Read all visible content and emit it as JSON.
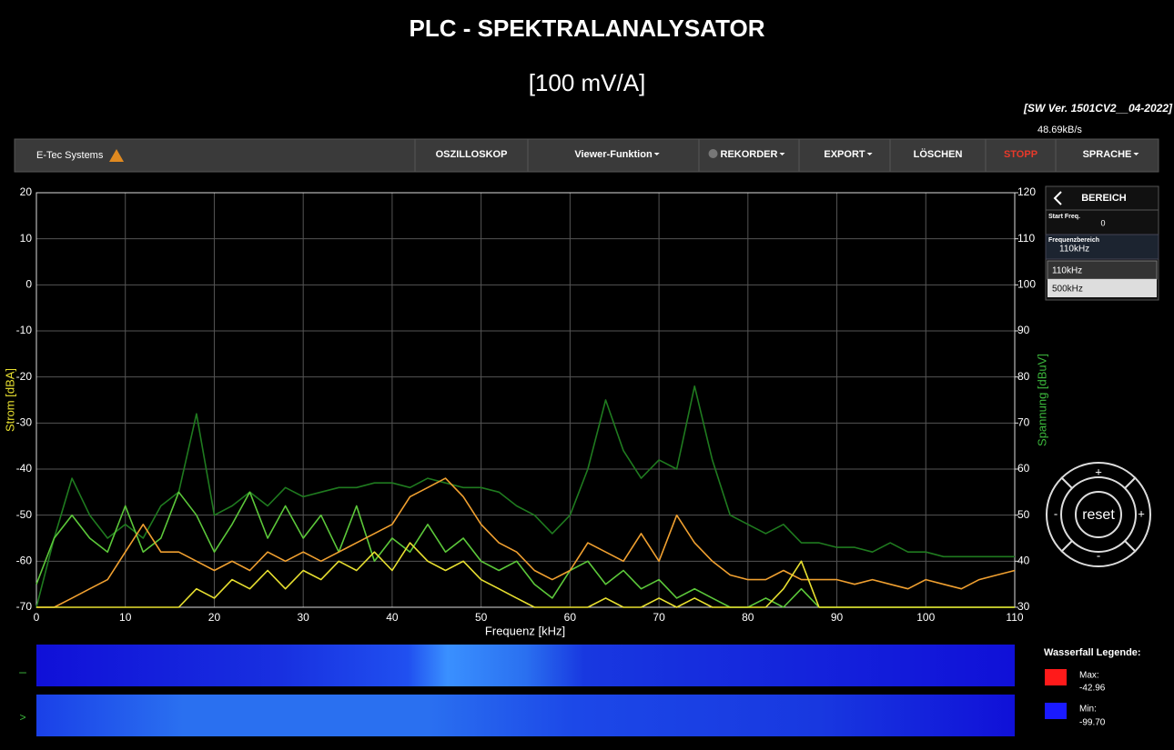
{
  "header": {
    "title": "PLC - SPEKTRALANALYSATOR",
    "subtitle": "[100 mV/A]",
    "version": "[SW Ver. 1501CV2__04-2022]",
    "rate": "48.69kB/s"
  },
  "nav": {
    "brand": "E-Tec Systems",
    "items": [
      "OSZILLOSKOP",
      "Viewer-Funktion",
      "REKORDER",
      "EXPORT",
      "LÖSCHEN",
      "STOPP",
      "SPRACHE"
    ]
  },
  "panel": {
    "title": "BEREICH",
    "start_label": "Start Freq.",
    "start_value": "0",
    "range_label": "Frequenzbereich",
    "range_value": "110kHz",
    "options": [
      "110kHz",
      "500kHz"
    ]
  },
  "control": {
    "reset": "reset",
    "up": "+",
    "down": "-",
    "left": "-",
    "right": "+"
  },
  "waterfall": {
    "rows": [
      "–",
      ">"
    ],
    "legend_title": "Wasserfall Legende:",
    "max_label": "Max:",
    "max_value": "-42.96",
    "min_label": "Min:",
    "min_value": "-99.70",
    "max_color": "#ff1a1a",
    "min_color": "#1a1aff"
  },
  "chart_data": {
    "type": "line",
    "xlabel": "Frequenz [kHz]",
    "ylabel": "Strom [dBA]",
    "y2label": "Spannung [dBuV]",
    "xlim": [
      0,
      110
    ],
    "xticks": [
      0,
      10,
      20,
      30,
      40,
      50,
      60,
      70,
      80,
      90,
      100,
      110
    ],
    "ylim": [
      -70,
      20
    ],
    "yticks": [
      -70,
      -60,
      -50,
      -40,
      -30,
      -20,
      -10,
      0,
      10,
      20
    ],
    "y2lim": [
      30,
      120
    ],
    "y2ticks": [
      30,
      40,
      50,
      60,
      70,
      80,
      90,
      100,
      110,
      120
    ],
    "grid": true,
    "x": [
      0,
      2,
      4,
      6,
      8,
      10,
      12,
      14,
      16,
      18,
      20,
      22,
      24,
      26,
      28,
      30,
      32,
      34,
      36,
      38,
      40,
      42,
      44,
      46,
      48,
      50,
      52,
      54,
      56,
      58,
      60,
      62,
      64,
      66,
      68,
      70,
      72,
      74,
      76,
      78,
      80,
      82,
      84,
      86,
      88,
      90,
      92,
      94,
      96,
      98,
      100,
      102,
      104,
      106,
      108,
      110
    ],
    "series": [
      {
        "color": "#1f7a1f",
        "axis": "y2",
        "values": [
          30,
          45,
          58,
          50,
          45,
          48,
          45,
          52,
          55,
          72,
          50,
          52,
          55,
          52,
          56,
          54,
          55,
          56,
          56,
          57,
          57,
          56,
          58,
          57,
          56,
          56,
          55,
          52,
          50,
          46,
          50,
          60,
          75,
          64,
          58,
          62,
          60,
          78,
          62,
          50,
          48,
          46,
          48,
          44,
          44,
          43,
          43,
          42,
          44,
          42,
          42,
          41,
          41,
          41,
          41,
          41
        ]
      },
      {
        "color": "#5cc83a",
        "values": [
          -65,
          -55,
          -50,
          -55,
          -58,
          -48,
          -58,
          -55,
          -45,
          -50,
          -58,
          -52,
          -45,
          -55,
          -48,
          -55,
          -50,
          -58,
          -48,
          -60,
          -55,
          -58,
          -52,
          -58,
          -55,
          -60,
          -62,
          -60,
          -65,
          -68,
          -62,
          -60,
          -65,
          -62,
          -66,
          -64,
          -68,
          -66,
          -68,
          -70,
          -70,
          -68,
          -70,
          -66,
          -70,
          -70,
          -70,
          -70,
          -70,
          -70,
          -70,
          -70,
          -70,
          -70,
          -70,
          -70
        ]
      },
      {
        "color": "#f0a030",
        "values": [
          -70,
          -70,
          -68,
          -66,
          -64,
          -58,
          -52,
          -58,
          -58,
          -60,
          -62,
          -60,
          -62,
          -58,
          -60,
          -58,
          -60,
          -58,
          -56,
          -54,
          -52,
          -46,
          -44,
          -42,
          -46,
          -52,
          -56,
          -58,
          -62,
          -64,
          -62,
          -56,
          -58,
          -60,
          -54,
          -60,
          -50,
          -56,
          -60,
          -63,
          -64,
          -64,
          -62,
          -64,
          -64,
          -64,
          -65,
          -64,
          -65,
          -66,
          -64,
          -65,
          -66,
          -64,
          -63,
          -62
        ]
      },
      {
        "color": "#e8e030",
        "values": [
          -70,
          -70,
          -70,
          -70,
          -70,
          -70,
          -70,
          -70,
          -70,
          -66,
          -68,
          -64,
          -66,
          -62,
          -66,
          -62,
          -64,
          -60,
          -62,
          -58,
          -62,
          -56,
          -60,
          -62,
          -60,
          -64,
          -66,
          -68,
          -70,
          -70,
          -70,
          -70,
          -68,
          -70,
          -70,
          -68,
          -70,
          -68,
          -70,
          -70,
          -70,
          -70,
          -66,
          -60,
          -70,
          -70,
          -70,
          -70,
          -70,
          -70,
          -70,
          -70,
          -70,
          -70,
          -70,
          -70
        ]
      }
    ]
  }
}
